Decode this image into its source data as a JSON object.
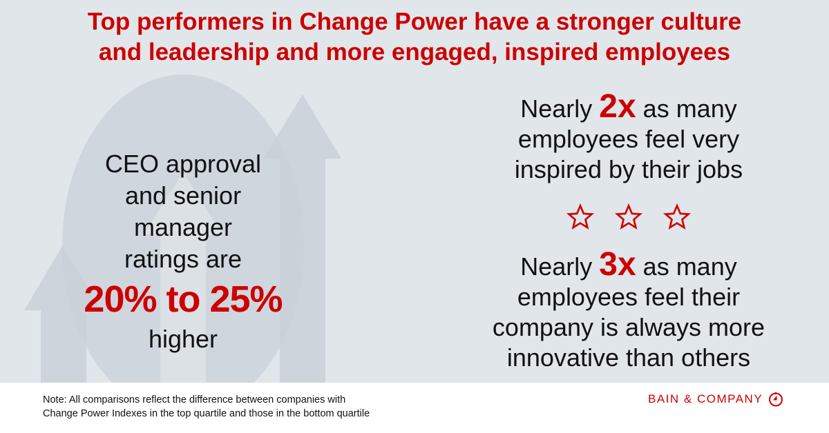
{
  "title": {
    "line1": "Top performers in Change Power have a stronger culture",
    "line2": "and leadership and more engaged, inspired employees"
  },
  "left": {
    "line1": "CEO approval",
    "line2": "and senior manager",
    "line3": "ratings are",
    "highlight": "20% to 25%",
    "line4": "higher"
  },
  "stat1": {
    "prefix": "Nearly ",
    "value": "2x",
    "suffix": " as many",
    "line2": "employees feel very",
    "line3": "inspired by their jobs"
  },
  "stat2": {
    "prefix": "Nearly ",
    "value": "3x",
    "suffix": " as many",
    "line2": "employees feel their",
    "line3": "company is always more",
    "line4": "innovative than others"
  },
  "stars": {
    "count": 3,
    "icon": "star-outline-icon"
  },
  "note": {
    "line1": "Note: All comparisons reflect the difference between companies with",
    "line2": "Change Power Indexes in the top quartile and those in the bottom quartile"
  },
  "logo": {
    "text": "BAIN & COMPANY"
  },
  "colors": {
    "accent": "#cc0000",
    "background": "#e1e6ea",
    "arrow": "#c9d0d8",
    "ellipse": "#d0d6dd"
  }
}
